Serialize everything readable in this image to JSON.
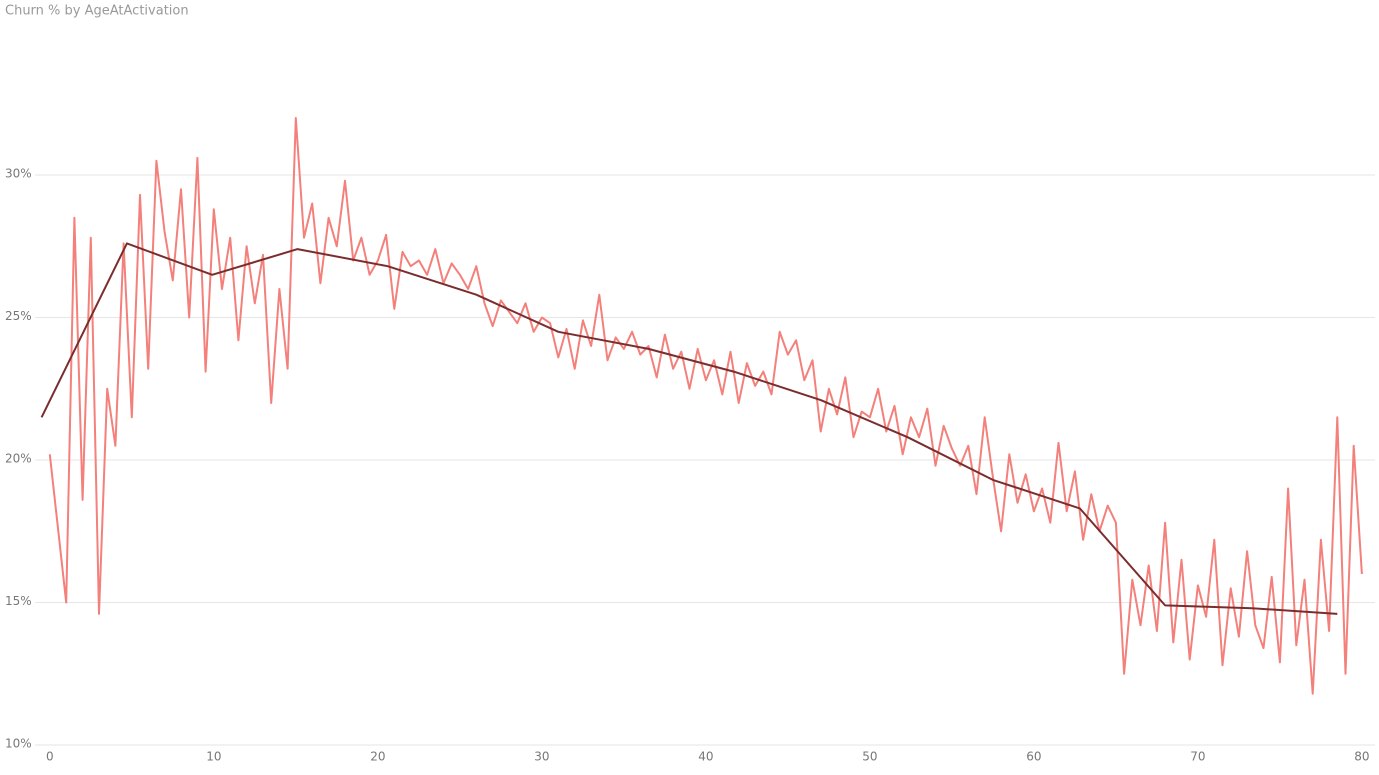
{
  "chart_data": {
    "type": "line",
    "title": "Churn % by AgeAtActivation",
    "x": [
      0,
      0.5,
      1,
      1.5,
      2,
      2.5,
      3,
      3.5,
      4,
      4.5,
      5,
      5.5,
      6,
      6.5,
      7,
      7.5,
      8,
      8.5,
      9,
      9.5,
      10,
      10.5,
      11,
      11.5,
      12,
      12.5,
      13,
      13.5,
      14,
      14.5,
      15,
      15.5,
      16,
      16.5,
      17,
      17.5,
      18,
      18.5,
      19,
      19.5,
      20,
      20.5,
      21,
      21.5,
      22,
      22.5,
      23,
      23.5,
      24,
      24.5,
      25,
      25.5,
      26,
      26.5,
      27,
      27.5,
      28,
      28.5,
      29,
      29.5,
      30,
      30.5,
      31,
      31.5,
      32,
      32.5,
      33,
      33.5,
      34,
      34.5,
      35,
      35.5,
      36,
      36.5,
      37,
      37.5,
      38,
      38.5,
      39,
      39.5,
      40,
      40.5,
      41,
      41.5,
      42,
      42.5,
      43,
      43.5,
      44,
      44.5,
      45,
      45.5,
      46,
      46.5,
      47,
      47.5,
      48,
      48.5,
      49,
      49.5,
      50,
      50.5,
      51,
      51.5,
      52,
      52.5,
      53,
      53.5,
      54,
      54.5,
      55,
      55.5,
      56,
      56.5,
      57,
      57.5,
      58,
      58.5,
      59,
      59.5,
      60,
      60.5,
      61,
      61.5,
      62,
      62.5,
      63,
      63.5,
      64,
      64.5,
      65,
      65.5,
      66,
      66.5,
      67,
      67.5,
      68,
      68.5,
      69,
      69.5,
      70,
      70.5,
      71,
      71.5,
      72,
      72.5,
      73,
      73.5,
      74,
      74.5,
      75,
      75.5,
      76,
      76.5,
      77,
      77.5,
      78,
      78.5,
      79,
      79.5,
      80
    ],
    "series": [
      {
        "color": "#f4807b",
        "values": [
          20.2,
          17.6,
          15.0,
          28.5,
          18.6,
          27.8,
          14.6,
          22.5,
          20.5,
          27.6,
          21.5,
          29.3,
          23.2,
          30.5,
          28.0,
          26.3,
          29.5,
          25.0,
          30.6,
          23.1,
          28.8,
          26.0,
          27.8,
          24.2,
          27.5,
          25.5,
          27.2,
          22.0,
          26.0,
          23.2,
          32.0,
          27.8,
          29.0,
          26.2,
          28.5,
          27.5,
          29.8,
          27.0,
          27.8,
          26.5,
          27.0,
          27.9,
          25.3,
          27.3,
          26.8,
          27.0,
          26.5,
          27.4,
          26.2,
          26.9,
          26.5,
          26.0,
          26.8,
          25.5,
          24.7,
          25.6,
          25.2,
          24.8,
          25.5,
          24.5,
          25.0,
          24.8,
          23.6,
          24.6,
          23.2,
          24.9,
          24.0,
          25.8,
          23.5,
          24.3,
          23.9,
          24.5,
          23.7,
          24.0,
          22.9,
          24.4,
          23.2,
          23.8,
          22.5,
          23.9,
          22.8,
          23.5,
          22.3,
          23.8,
          22.0,
          23.4,
          22.6,
          23.1,
          22.3,
          24.5,
          23.7,
          24.2,
          22.8,
          23.5,
          21.0,
          22.5,
          21.6,
          22.9,
          20.8,
          21.7,
          21.5,
          22.5,
          21.0,
          21.9,
          20.2,
          21.5,
          20.8,
          21.8,
          19.8,
          21.2,
          20.4,
          19.8,
          20.5,
          18.8,
          21.5,
          19.4,
          17.5,
          20.2,
          18.5,
          19.5,
          18.2,
          19.0,
          17.8,
          20.6,
          18.2,
          19.6,
          17.2,
          18.8,
          17.5,
          18.4,
          17.8,
          12.5,
          15.8,
          14.2,
          16.3,
          14.0,
          17.8,
          13.6,
          16.5,
          13.0,
          15.6,
          14.5,
          17.2,
          12.8,
          15.5,
          13.8,
          16.8,
          14.2,
          13.4,
          15.9,
          12.9,
          19.0,
          13.5,
          15.8,
          11.8,
          17.2,
          14.0,
          21.5,
          12.5,
          20.5,
          16.0
        ]
      },
      {
        "color": "#7b2d2d",
        "x": [
          -0.5,
          4.7,
          9.9,
          15.1,
          20.6,
          26,
          31,
          36.5,
          41.7,
          47,
          52.3,
          57.5,
          62.8,
          68,
          73.3,
          78.5
        ],
        "values": [
          21.5,
          27.6,
          26.5,
          27.4,
          26.8,
          25.8,
          24.5,
          23.9,
          23.1,
          22.1,
          20.8,
          19.3,
          18.3,
          14.9,
          14.8,
          14.6
        ]
      }
    ],
    "xlim": [
      -0.6,
      80.8
    ],
    "xticks": [
      0,
      10,
      20,
      30,
      40,
      50,
      60,
      70,
      80
    ],
    "ylim": [
      10,
      35
    ],
    "yticks": [
      {
        "value": 10,
        "label": "10%"
      },
      {
        "value": 15,
        "label": "15%"
      },
      {
        "value": 20,
        "label": "20%"
      },
      {
        "value": 25,
        "label": "25%"
      },
      {
        "value": 30,
        "label": "30%"
      }
    ],
    "grid": true
  }
}
